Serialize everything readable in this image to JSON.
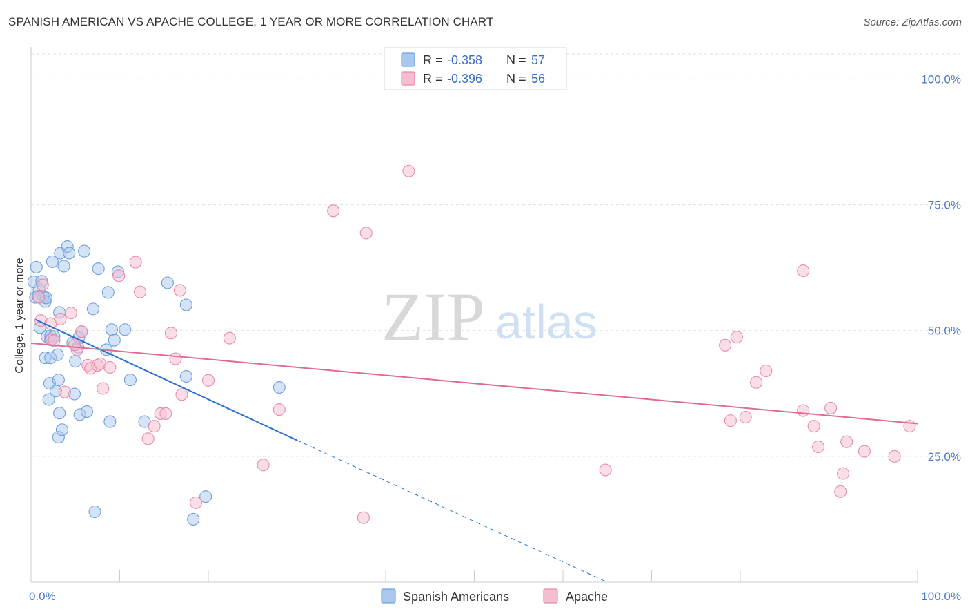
{
  "title": "SPANISH AMERICAN VS APACHE COLLEGE, 1 YEAR OR MORE CORRELATION CHART",
  "source": "Source: ZipAtlas.com",
  "watermark": {
    "zip": "ZIP",
    "atlas": "atlas"
  },
  "colors": {
    "blue_fill": "#a9c8ee",
    "blue_stroke": "#6f9fdc",
    "blue_line": "#2a6fd0",
    "pink_fill": "#f6bdd0",
    "pink_stroke": "#e88aa9",
    "pink_line": "#e06a93",
    "grid": "#dddddd",
    "tick_text": "#4a78c4"
  },
  "legend": {
    "r_label": "R =",
    "n_label": "N =",
    "rows": [
      {
        "r": "-0.358",
        "n": "57"
      },
      {
        "r": "-0.396",
        "n": "56"
      }
    ]
  },
  "chart_data": {
    "type": "scatter",
    "ylabel": "College, 1 year or more",
    "xlim": [
      0,
      100
    ],
    "ylim": [
      0,
      105
    ],
    "x_tick_labels": [
      "0.0%",
      "100.0%"
    ],
    "y_ticks": [
      {
        "value": 25,
        "label": "25.0%"
      },
      {
        "value": 50,
        "label": "50.0%"
      },
      {
        "value": 75,
        "label": "75.0%"
      },
      {
        "value": 100,
        "label": "100.0%"
      }
    ],
    "grid": true,
    "legend_position": "top-center",
    "series": [
      {
        "name": "Spanish Americans",
        "color": "blue",
        "points": [
          [
            0.3,
            59.7
          ],
          [
            0.5,
            56.6
          ],
          [
            0.6,
            62.6
          ],
          [
            0.9,
            58.2
          ],
          [
            1.0,
            50.6
          ],
          [
            1.2,
            59.8
          ],
          [
            1.4,
            56.7
          ],
          [
            1.6,
            44.6
          ],
          [
            1.8,
            48.8
          ],
          [
            1.6,
            55.8
          ],
          [
            1.7,
            56.5
          ],
          [
            2.0,
            36.3
          ],
          [
            2.1,
            39.5
          ],
          [
            2.2,
            44.6
          ],
          [
            2.2,
            48.2
          ],
          [
            2.2,
            48.9
          ],
          [
            2.4,
            63.7
          ],
          [
            2.6,
            48.8
          ],
          [
            2.8,
            38.0
          ],
          [
            3.0,
            45.2
          ],
          [
            3.1,
            40.2
          ],
          [
            3.1,
            28.8
          ],
          [
            3.2,
            33.6
          ],
          [
            3.2,
            53.6
          ],
          [
            3.3,
            65.4
          ],
          [
            3.5,
            30.3
          ],
          [
            3.7,
            62.8
          ],
          [
            4.1,
            66.7
          ],
          [
            4.3,
            65.4
          ],
          [
            4.7,
            47.6
          ],
          [
            4.9,
            37.4
          ],
          [
            5.0,
            43.9
          ],
          [
            5.3,
            46.7
          ],
          [
            5.4,
            48.6
          ],
          [
            5.5,
            33.3
          ],
          [
            5.7,
            49.8
          ],
          [
            6.0,
            65.8
          ],
          [
            6.3,
            33.9
          ],
          [
            7.0,
            54.3
          ],
          [
            7.2,
            14.0
          ],
          [
            7.6,
            62.3
          ],
          [
            8.5,
            46.2
          ],
          [
            8.7,
            57.6
          ],
          [
            8.9,
            31.9
          ],
          [
            9.1,
            50.2
          ],
          [
            9.4,
            48.1
          ],
          [
            9.8,
            61.7
          ],
          [
            10.6,
            50.2
          ],
          [
            11.2,
            40.2
          ],
          [
            12.8,
            31.9
          ],
          [
            15.4,
            59.5
          ],
          [
            17.5,
            55.1
          ],
          [
            17.5,
            40.9
          ],
          [
            18.3,
            12.5
          ],
          [
            19.7,
            17.0
          ],
          [
            28.0,
            38.7
          ],
          [
            0.8,
            56.8
          ]
        ],
        "trend": {
          "x0": 0.5,
          "y0": 52.2,
          "x1": 30.0,
          "y1": 28.2,
          "dash_to_x": 65.0,
          "dash_to_y": 0
        }
      },
      {
        "name": "Apache",
        "color": "pink",
        "points": [
          [
            0.9,
            56.6
          ],
          [
            1.1,
            52.0
          ],
          [
            1.3,
            59.1
          ],
          [
            2.2,
            51.4
          ],
          [
            2.3,
            48.2
          ],
          [
            2.6,
            48.0
          ],
          [
            3.3,
            52.3
          ],
          [
            3.8,
            37.8
          ],
          [
            4.5,
            53.5
          ],
          [
            5.2,
            46.2
          ],
          [
            5.7,
            49.8
          ],
          [
            6.4,
            43.1
          ],
          [
            6.7,
            42.5
          ],
          [
            7.5,
            43.1
          ],
          [
            7.8,
            43.4
          ],
          [
            8.1,
            38.5
          ],
          [
            8.9,
            42.7
          ],
          [
            9.9,
            60.9
          ],
          [
            11.8,
            63.6
          ],
          [
            12.3,
            57.7
          ],
          [
            13.2,
            28.5
          ],
          [
            13.9,
            31.0
          ],
          [
            14.6,
            33.5
          ],
          [
            15.2,
            33.5
          ],
          [
            15.8,
            49.5
          ],
          [
            16.3,
            44.4
          ],
          [
            16.8,
            58.0
          ],
          [
            17.0,
            37.3
          ],
          [
            18.6,
            15.8
          ],
          [
            20.0,
            40.1
          ],
          [
            22.4,
            48.5
          ],
          [
            26.2,
            23.3
          ],
          [
            28.0,
            34.3
          ],
          [
            34.1,
            73.8
          ],
          [
            37.5,
            12.8
          ],
          [
            37.8,
            69.4
          ],
          [
            42.6,
            81.7
          ],
          [
            64.8,
            22.3
          ],
          [
            78.3,
            47.1
          ],
          [
            78.9,
            32.1
          ],
          [
            79.6,
            48.7
          ],
          [
            80.6,
            32.8
          ],
          [
            81.8,
            39.7
          ],
          [
            82.9,
            42.0
          ],
          [
            87.1,
            61.9
          ],
          [
            87.1,
            34.1
          ],
          [
            88.3,
            31.0
          ],
          [
            88.8,
            26.9
          ],
          [
            90.2,
            34.6
          ],
          [
            91.3,
            18.0
          ],
          [
            91.6,
            21.6
          ],
          [
            92.0,
            27.9
          ],
          [
            94.0,
            26.0
          ],
          [
            97.4,
            25.0
          ],
          [
            99.1,
            31.0
          ],
          [
            4.9,
            47.2
          ]
        ],
        "trend": {
          "x0": 0.0,
          "y0": 47.5,
          "x1": 100.0,
          "y1": 31.5
        }
      }
    ]
  }
}
